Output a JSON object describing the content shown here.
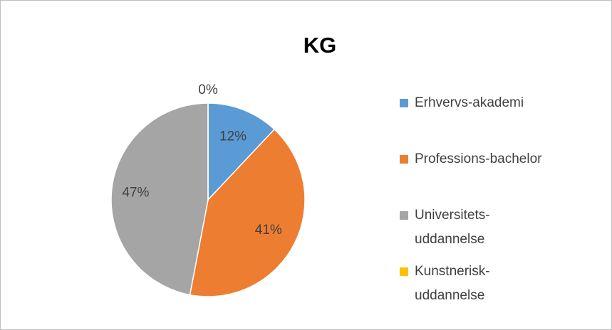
{
  "chart_data": {
    "type": "pie",
    "title": "KG",
    "categories": [
      "Erhvervs-akademi",
      "Professions-bachelor",
      "Universitets-uddannelse",
      "Kunstnerisk-uddannelse"
    ],
    "values": [
      12,
      41,
      47,
      0
    ],
    "value_labels": [
      "12%",
      "41%",
      "47%",
      "0%"
    ],
    "colors": [
      "#5b9bd5",
      "#ed7d31",
      "#a5a5a5",
      "#ffc000"
    ],
    "legend": "right"
  }
}
